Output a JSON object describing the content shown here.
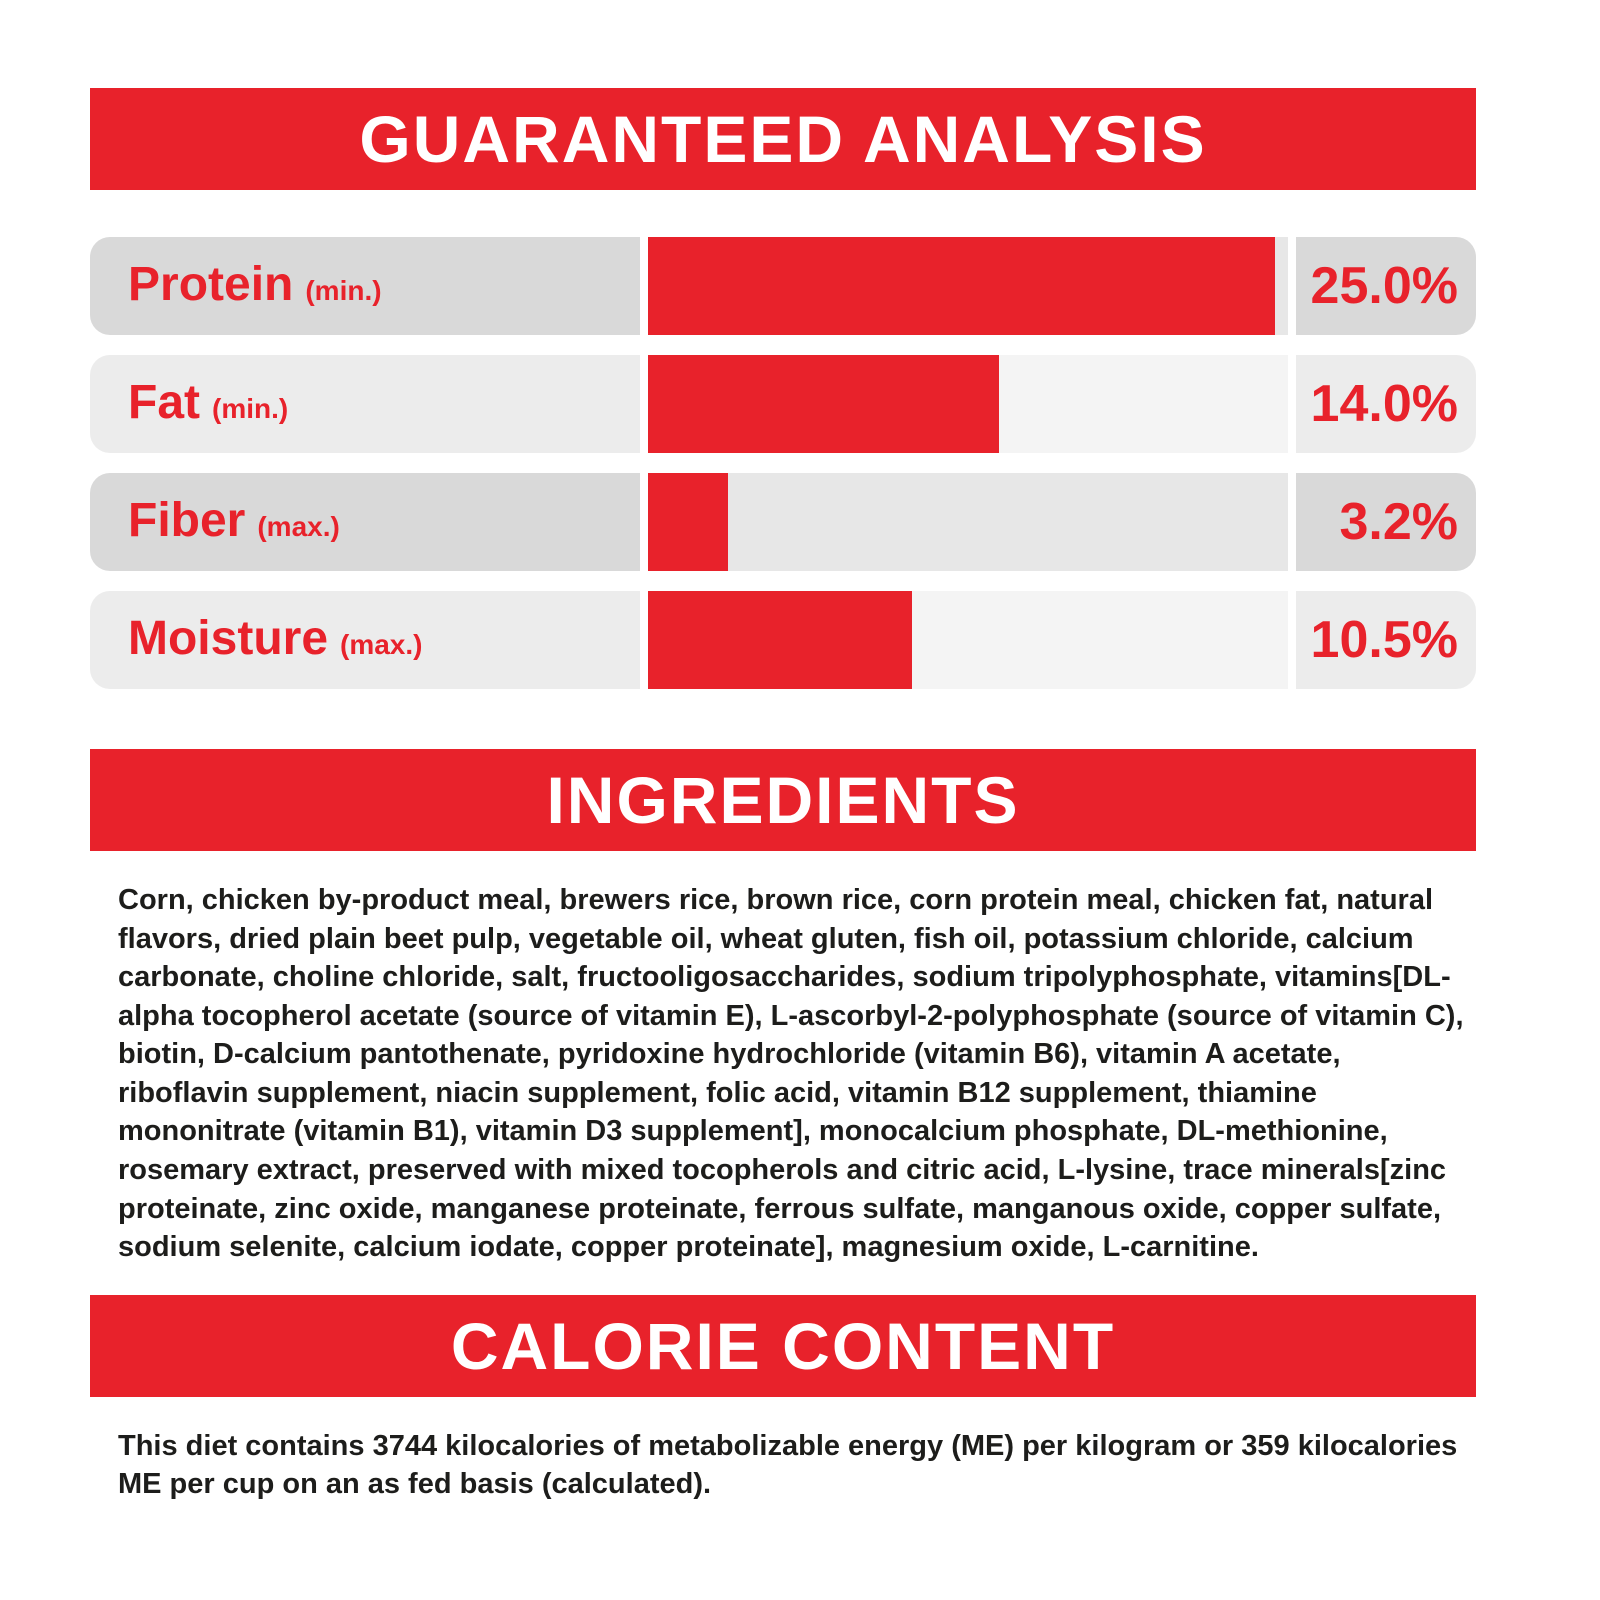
{
  "colors": {
    "accent": "#e8222b",
    "banner_text": "#ffffff",
    "page_bg": "#ffffff",
    "row_cap": "#d9d9d9",
    "row_cap_alt": "#ececec",
    "bar_track": "#e7e7e7",
    "bar_track_alt": "#f4f4f4",
    "body_text": "#1d1d1b"
  },
  "banners": {
    "guaranteed_analysis": "GUARANTEED ANALYSIS",
    "ingredients": "INGREDIENTS",
    "calorie_content": "CALORIE CONTENT"
  },
  "chart_data": {
    "type": "bar",
    "orientation": "horizontal",
    "title": "GUARANTEED ANALYSIS",
    "categories": [
      "Protein",
      "Fat",
      "Fiber",
      "Moisture"
    ],
    "qualifiers": [
      "(min.)",
      "(min.)",
      "(max.)",
      "(max.)"
    ],
    "values": [
      25.0,
      14.0,
      3.2,
      10.5
    ],
    "value_labels": [
      "25.0%",
      "14.0%",
      "3.2%",
      "10.5%"
    ],
    "xlim": [
      0,
      25.5
    ],
    "grid": false,
    "legend": false,
    "bar_color": "#e8222b"
  },
  "ingredients": {
    "body": "Corn, chicken by-product meal, brewers rice, brown rice, corn protein meal, chicken fat, natural flavors, dried plain beet pulp, vegetable oil, wheat gluten, fish oil, potassium chloride, calcium carbonate, choline chloride, salt, fructooligosaccharides, sodium tripolyphosphate, vitamins[DL-alpha tocopherol acetate (source of vitamin E), L-ascorbyl-2-polyphosphate (source of vitamin C), biotin, D-calcium pantothenate, pyridoxine hydrochloride (vitamin B6), vitamin A acetate, riboflavin supplement, niacin supplement, folic acid, vitamin B12 supplement, thiamine mononitrate (vitamin B1), vitamin D3 supplement], monocalcium phosphate, DL-methionine, rosemary extract, preserved with mixed tocopherols and citric acid, L-lysine, trace minerals[zinc proteinate, zinc oxide, manganese proteinate, ferrous sulfate, manganous oxide, copper sulfate, sodium selenite, calcium iodate, copper proteinate], magnesium oxide, L-carnitine."
  },
  "calorie": {
    "body": "This diet contains 3744 kilocalories of metabolizable energy (ME) per kilogram or 359 kilocalories ME per cup on an as fed basis (calculated)."
  }
}
